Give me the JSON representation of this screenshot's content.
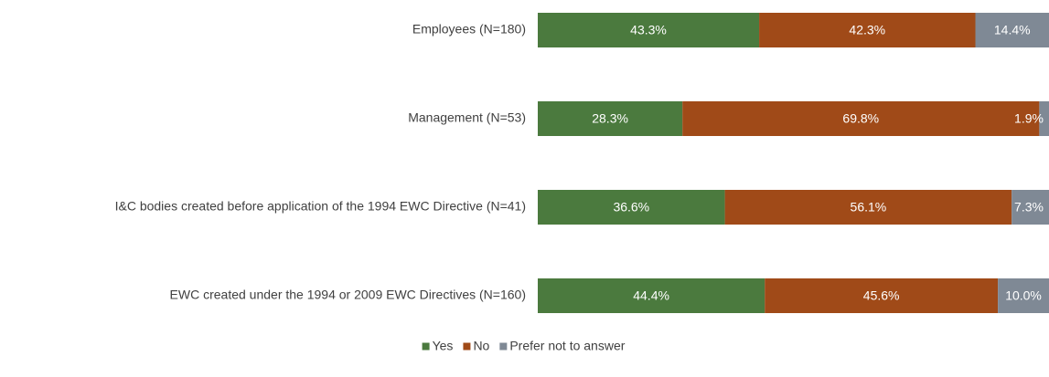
{
  "chart_data": {
    "type": "stacked_barh",
    "categories": [
      "Employees (N=180)",
      "Management (N=53)",
      "I&C bodies created before application of the 1994 EWC Directive (N=41)",
      "EWC created under the 1994 or 2009 EWC Directives (N=160)"
    ],
    "series": [
      {
        "name": "Yes",
        "color": "#4b7a3e",
        "values": [
          43.3,
          28.3,
          36.6,
          44.4
        ],
        "value_labels": [
          "43.3%",
          "28.3%",
          "36.6%",
          "44.4%"
        ]
      },
      {
        "name": "No",
        "color": "#a04a18",
        "values": [
          42.3,
          69.8,
          56.1,
          45.6
        ],
        "value_labels": [
          "42.3%",
          "69.8%",
          "56.1%",
          "45.6%"
        ]
      },
      {
        "name": "Prefer not to answer",
        "color": "#7f8995",
        "values": [
          14.4,
          1.9,
          7.3,
          10.0
        ],
        "value_labels": [
          "14.4%",
          "1.9%",
          "7.3%",
          "10.0%"
        ]
      }
    ],
    "xlim": [
      0,
      100
    ],
    "legend": "bottom"
  }
}
